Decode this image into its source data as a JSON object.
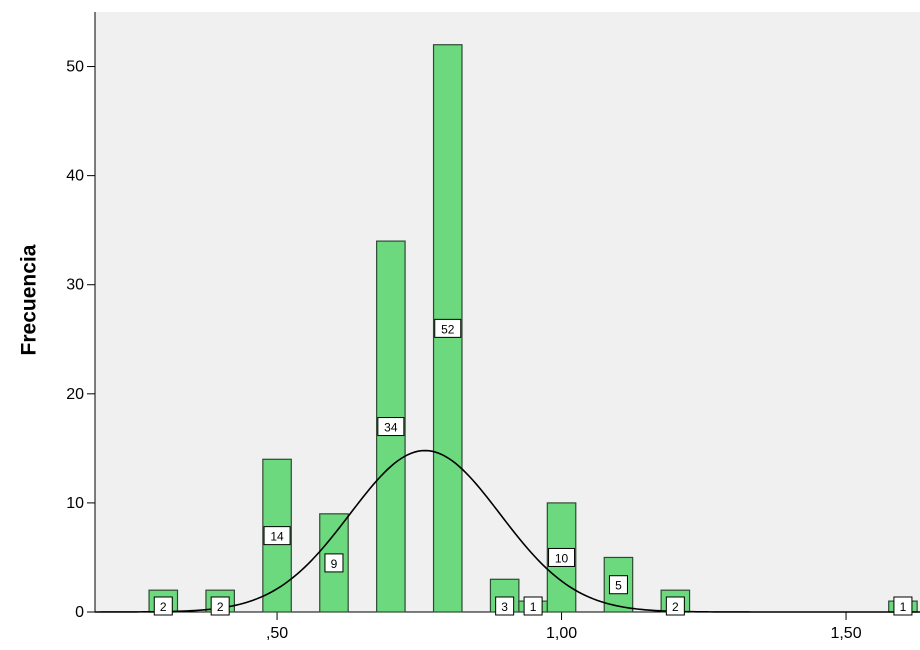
{
  "chart_data": {
    "type": "histogram",
    "xlabel": "",
    "ylabel": "Frecuencia",
    "xlim": [
      0.18,
      1.63
    ],
    "ylim": [
      0,
      55
    ],
    "x_ticks": [
      0.5,
      1.0,
      1.5
    ],
    "x_tick_labels": [
      ",50",
      "1,00",
      "1,50"
    ],
    "y_ticks": [
      0,
      10,
      20,
      30,
      40,
      50
    ],
    "y_tick_labels": [
      "0",
      "10",
      "20",
      "30",
      "40",
      "50"
    ],
    "bin_width": 0.05,
    "bins": [
      {
        "x": 0.3,
        "count": 2
      },
      {
        "x": 0.4,
        "count": 2
      },
      {
        "x": 0.5,
        "count": 14
      },
      {
        "x": 0.6,
        "count": 9
      },
      {
        "x": 0.7,
        "count": 34
      },
      {
        "x": 0.8,
        "count": 52
      },
      {
        "x": 0.9,
        "count": 3
      },
      {
        "x": 0.95,
        "count": 1
      },
      {
        "x": 1.0,
        "count": 10
      },
      {
        "x": 1.1,
        "count": 5
      },
      {
        "x": 1.2,
        "count": 2
      },
      {
        "x": 1.6,
        "count": 1
      }
    ],
    "bar_labels": [
      "2",
      "2",
      "14",
      "9",
      "34",
      "52",
      "3",
      "1",
      "10",
      "5",
      "2",
      "1"
    ],
    "normal_curve": {
      "mean": 0.76,
      "sd": 0.132,
      "peak": 14.8
    },
    "grid": false,
    "colors": {
      "bar_fill": "#6dd97e",
      "bar_stroke": "#2f4a33",
      "plot_bg": "#f0f0f0",
      "curve": "#000000"
    }
  }
}
